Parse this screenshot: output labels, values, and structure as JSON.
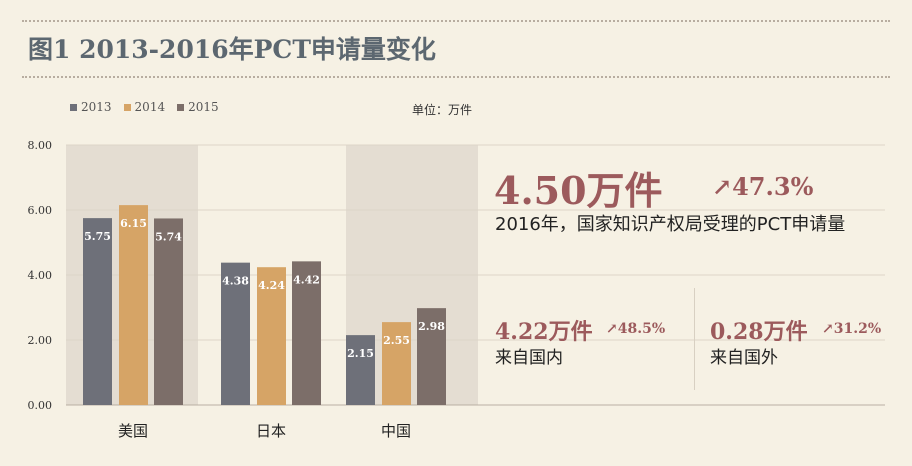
{
  "title": "图1  2013-2016年PCT申请量变化",
  "unit_label": "单位：万件",
  "colors": {
    "s2013": "#6e7079",
    "s2014": "#d6a466",
    "s2015": "#7c6e69",
    "shade": "#e4ddd2",
    "accent": "#9c5a5c",
    "title": "#5c6770"
  },
  "highlight": {
    "main_value": "4.50万件",
    "main_change": "47.3%",
    "main_desc": "2016年，国家知识产权局受理的PCT申请量",
    "domestic_value": "4.22万件",
    "domestic_change": "48.5%",
    "domestic_desc": "来自国内",
    "foreign_value": "0.28万件",
    "foreign_change": "31.2%",
    "foreign_desc": "来自国外",
    "arrow_icon": "arrow-up-right-icon"
  },
  "chart_data": {
    "type": "bar",
    "categories": [
      "美国",
      "日本",
      "中国"
    ],
    "series": [
      {
        "name": "2013",
        "values": [
          5.75,
          4.38,
          2.15
        ],
        "labels": [
          "5.75",
          "4.38",
          "2.15"
        ]
      },
      {
        "name": "2014",
        "values": [
          6.15,
          4.24,
          2.55
        ],
        "labels": [
          "6.15",
          "4.24",
          "2.55"
        ]
      },
      {
        "name": "2015",
        "values": [
          5.74,
          4.42,
          2.98
        ],
        "labels": [
          "5.74",
          "4.42",
          "2.98"
        ]
      }
    ],
    "ylim": [
      0,
      8
    ],
    "yticks": [
      "0.00",
      "2.00",
      "4.00",
      "6.00",
      "8.00"
    ],
    "grid": true,
    "legend_position": "top-left"
  }
}
